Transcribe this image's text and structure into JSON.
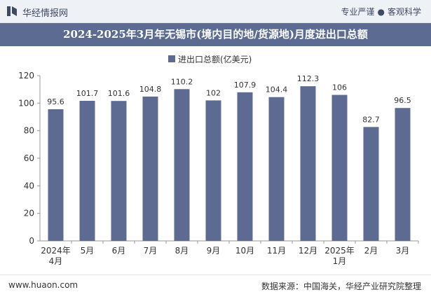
{
  "header": {
    "brand": "华经情报网",
    "tagline_left": "专业严谨",
    "tagline_sep": "●",
    "tagline_right": "客观科学"
  },
  "footer": {
    "website": "www.huaon.com",
    "source": "数据来源：中国海关，华经产业研究院整理"
  },
  "colors": {
    "bar": "#5d6b93",
    "title_bg": "#5b6b92"
  },
  "chart_data": {
    "type": "bar",
    "title": "2024-2025年3月年无锡市(境内目的地/货源地)月度进出口总额",
    "legend": [
      "进出口总额(亿美元)"
    ],
    "categories": [
      "2024年\n4月",
      "5月",
      "6月",
      "7月",
      "8月",
      "9月",
      "10月",
      "11月",
      "12月",
      "2025年\n1月",
      "2月",
      "3月"
    ],
    "series": [
      {
        "name": "进出口总额(亿美元)",
        "values": [
          95.6,
          101.7,
          101.6,
          104.8,
          110.2,
          102,
          107.9,
          104.4,
          112.3,
          106,
          82.7,
          96.5
        ]
      }
    ],
    "ylim": [
      0,
      120
    ],
    "yticks": [
      0,
      20,
      40,
      60,
      80,
      100,
      120
    ],
    "xlabel": "",
    "ylabel": "",
    "grid": false
  }
}
